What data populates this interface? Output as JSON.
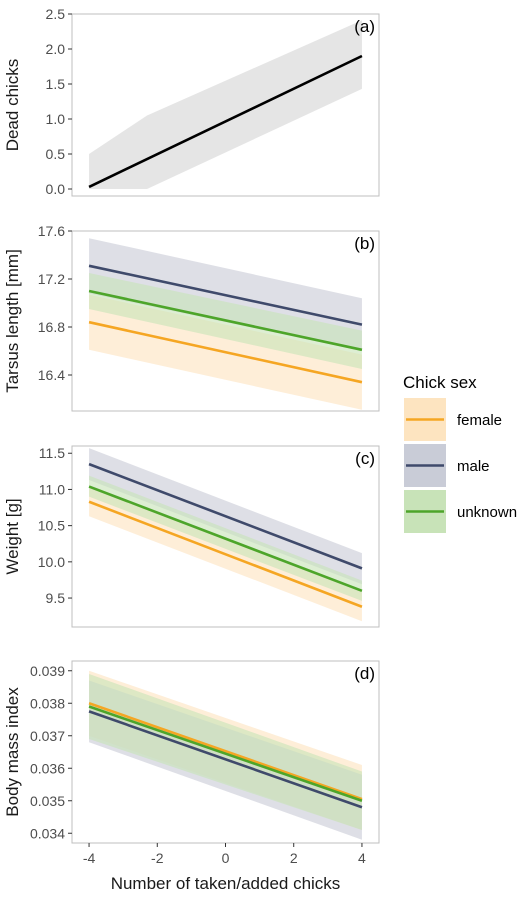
{
  "figure": {
    "xlabel": "Number of taken/added chicks",
    "xticks": [
      -4,
      -2,
      0,
      2,
      4
    ],
    "legend": {
      "title": "Chick sex",
      "placement": "right",
      "entries": [
        {
          "name": "female",
          "color": "#f5a623",
          "fill": "#fde4c0"
        },
        {
          "name": "male",
          "color": "#3f4a6b",
          "fill": "#c9ccd7"
        },
        {
          "name": "unknown",
          "color": "#4da52a",
          "fill": "#c8e3b8"
        }
      ]
    }
  },
  "chart_data": [
    {
      "type": "line",
      "panel_label": "(a)",
      "ylabel": "Dead chicks",
      "xlim": [
        -4.5,
        4.5
      ],
      "ylim": [
        -0.1,
        2.5
      ],
      "yticks": [
        "0.0",
        "0.5",
        "1.0",
        "1.5",
        "2.0",
        "2.5"
      ],
      "grid": false,
      "series": [
        {
          "color": "#000000",
          "fill": "#e0e0e0",
          "x": [
            -4,
            4
          ],
          "y": [
            0.03,
            1.9
          ],
          "ci_x": [
            -4,
            -2.3,
            4
          ],
          "ci_lower": [
            0.0,
            0.0,
            1.43
          ],
          "ci_upper": [
            0.5,
            1.05,
            2.41
          ]
        }
      ]
    },
    {
      "type": "line",
      "panel_label": "(b)",
      "ylabel": "Tarsus length [mm]",
      "xlim": [
        -4.5,
        4.5
      ],
      "ylim": [
        16.1,
        17.6
      ],
      "yticks": [
        "16.4",
        "16.8",
        "17.2",
        "17.6"
      ],
      "grid": false,
      "series": [
        {
          "name": "female",
          "color": "#f5a623",
          "fill": "#fde4c0",
          "x": [
            -4,
            4
          ],
          "y": [
            16.84,
            16.34
          ],
          "ci_lower": [
            16.61,
            16.11
          ],
          "ci_upper": [
            17.07,
            16.57
          ]
        },
        {
          "name": "male",
          "color": "#3f4a6b",
          "fill": "#c9ccd7",
          "x": [
            -4,
            4
          ],
          "y": [
            17.31,
            16.82
          ],
          "ci_lower": [
            17.08,
            16.6
          ],
          "ci_upper": [
            17.54,
            17.04
          ]
        },
        {
          "name": "unknown",
          "color": "#4da52a",
          "fill": "#c8e3b8",
          "x": [
            -4,
            4
          ],
          "y": [
            17.1,
            16.61
          ],
          "ci_lower": [
            16.95,
            16.45
          ],
          "ci_upper": [
            17.25,
            16.77
          ]
        }
      ]
    },
    {
      "type": "line",
      "panel_label": "(c)",
      "ylabel": "Weight [g]",
      "xlim": [
        -4.5,
        4.5
      ],
      "ylim": [
        9.1,
        11.6
      ],
      "yticks": [
        "9.5",
        "10.0",
        "10.5",
        "11.0",
        "11.5"
      ],
      "grid": false,
      "series": [
        {
          "name": "female",
          "color": "#f5a623",
          "fill": "#fde4c0",
          "x": [
            -4,
            4
          ],
          "y": [
            10.83,
            9.38
          ],
          "ci_lower": [
            10.63,
            9.18
          ],
          "ci_upper": [
            11.03,
            9.58
          ]
        },
        {
          "name": "male",
          "color": "#3f4a6b",
          "fill": "#c9ccd7",
          "x": [
            -4,
            4
          ],
          "y": [
            11.35,
            9.91
          ],
          "ci_lower": [
            11.13,
            9.69
          ],
          "ci_upper": [
            11.57,
            10.12
          ]
        },
        {
          "name": "unknown",
          "color": "#4da52a",
          "fill": "#c8e3b8",
          "x": [
            -4,
            4
          ],
          "y": [
            11.04,
            9.6
          ],
          "ci_lower": [
            10.9,
            9.46
          ],
          "ci_upper": [
            11.19,
            9.74
          ]
        }
      ]
    },
    {
      "type": "line",
      "panel_label": "(d)",
      "ylabel": "Body mass index",
      "xlim": [
        -4.5,
        4.5
      ],
      "ylim": [
        0.0337,
        0.0393
      ],
      "yticks": [
        "0.034",
        "0.035",
        "0.036",
        "0.037",
        "0.038",
        "0.039"
      ],
      "grid": false,
      "series": [
        {
          "name": "female",
          "color": "#f5a623",
          "fill": "#fde4c0",
          "x": [
            -4,
            4
          ],
          "y": [
            0.038,
            0.03505
          ],
          "ci_lower": [
            0.037,
            0.0341
          ],
          "ci_upper": [
            0.039,
            0.0361
          ]
        },
        {
          "name": "male",
          "color": "#3f4a6b",
          "fill": "#c9ccd7",
          "x": [
            -4,
            4
          ],
          "y": [
            0.03775,
            0.0348
          ],
          "ci_lower": [
            0.0368,
            0.0338
          ],
          "ci_upper": [
            0.0387,
            0.0358
          ]
        },
        {
          "name": "unknown",
          "color": "#4da52a",
          "fill": "#c8e3b8",
          "x": [
            -4,
            4
          ],
          "y": [
            0.0379,
            0.035
          ],
          "ci_lower": [
            0.0369,
            0.0341
          ],
          "ci_upper": [
            0.0389,
            0.0359
          ]
        }
      ]
    }
  ]
}
